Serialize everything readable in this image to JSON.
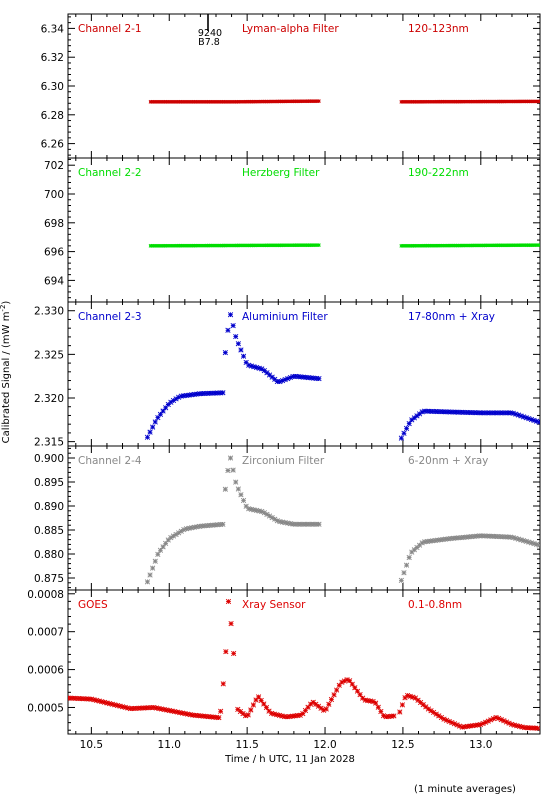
{
  "y_axis_label": "Calibrated Signal / (mW m",
  "y_axis_label_super": "-2",
  "y_axis_label_close": ")",
  "x_axis_label": "Time / h UTC, 11 Jan 2028",
  "footnote": "(1 minute averages)",
  "x_ticks": [
    "10.5",
    "11.0",
    "11.5",
    "12.0",
    "12.5",
    "13.0"
  ],
  "marker_annotation": [
    "9240",
    "B7.8"
  ],
  "chart_data": [
    {
      "type": "scatter",
      "panel": "Channel 2-1",
      "labels": [
        "Channel 2-1",
        "Lyman-alpha Filter",
        "120-123nm"
      ],
      "color": "#cc0000",
      "ylim": [
        6.25,
        6.35
      ],
      "y_ticks": [
        "6.26",
        "6.28",
        "6.30",
        "6.32",
        "6.34"
      ],
      "segments": [
        {
          "x_start": 10.88,
          "x_end": 11.97,
          "anchors": [
            [
              10.88,
              6.289
            ],
            [
              11.4,
              6.289
            ],
            [
              11.97,
              6.2895
            ]
          ]
        },
        {
          "x_start": 12.49,
          "x_end": 13.38,
          "anchors": [
            [
              12.49,
              6.289
            ],
            [
              13.38,
              6.2893
            ]
          ]
        }
      ]
    },
    {
      "type": "scatter",
      "panel": "Channel 2-2",
      "labels": [
        "Channel 2-2",
        "Herzberg Filter",
        "190-222nm"
      ],
      "color": "#00dd00",
      "ylim": [
        692.5,
        702.5
      ],
      "y_ticks": [
        "694",
        "696",
        "698",
        "700",
        "702"
      ],
      "segments": [
        {
          "x_start": 10.88,
          "x_end": 11.97,
          "anchors": [
            [
              10.88,
              696.4
            ],
            [
              11.97,
              696.45
            ]
          ]
        },
        {
          "x_start": 12.49,
          "x_end": 13.38,
          "anchors": [
            [
              12.49,
              696.4
            ],
            [
              13.38,
              696.45
            ]
          ]
        }
      ]
    },
    {
      "type": "scatter",
      "panel": "Channel 2-3",
      "labels": [
        "Channel 2-3",
        "Aluminium Filter",
        "17-80nm + Xray"
      ],
      "color": "#0000cc",
      "ylim": [
        2.3145,
        2.331
      ],
      "y_ticks": [
        "2.315",
        "2.320",
        "2.325",
        "2.330"
      ],
      "segments": [
        {
          "x_start": 10.86,
          "x_end": 11.35,
          "anchors": [
            [
              10.86,
              2.3155
            ],
            [
              10.92,
              2.3176
            ],
            [
              11.0,
              2.3194
            ],
            [
              11.07,
              2.3202
            ],
            [
              11.2,
              2.3205
            ],
            [
              11.35,
              2.3206
            ]
          ]
        },
        {
          "x_start": 11.36,
          "x_end": 11.97,
          "anchors": [
            [
              11.36,
              2.3252
            ],
            [
              11.39,
              2.3298
            ],
            [
              11.43,
              2.3268
            ],
            [
              11.5,
              2.3238
            ],
            [
              11.6,
              2.3233
            ],
            [
              11.7,
              2.3218
            ],
            [
              11.8,
              2.3225
            ],
            [
              11.97,
              2.3222
            ]
          ]
        },
        {
          "x_start": 12.49,
          "x_end": 13.38,
          "anchors": [
            [
              12.49,
              2.3154
            ],
            [
              12.55,
              2.3174
            ],
            [
              12.63,
              2.3185
            ],
            [
              12.8,
              2.3184
            ],
            [
              13.0,
              2.3183
            ],
            [
              13.2,
              2.3183
            ],
            [
              13.38,
              2.3172
            ]
          ]
        }
      ]
    },
    {
      "type": "scatter",
      "panel": "Channel 2-4",
      "labels": [
        "Channel 2-4",
        "Zirconium Filter",
        "6-20nm + Xray"
      ],
      "color": "#888888",
      "ylim": [
        0.8725,
        0.9025
      ],
      "y_ticks": [
        "0.875",
        "0.880",
        "0.885",
        "0.890",
        "0.895",
        "0.900"
      ],
      "segments": [
        {
          "x_start": 10.86,
          "x_end": 11.35,
          "anchors": [
            [
              10.86,
              0.8742
            ],
            [
              10.93,
              0.8802
            ],
            [
              11.0,
              0.8832
            ],
            [
              11.1,
              0.8852
            ],
            [
              11.2,
              0.8858
            ],
            [
              11.35,
              0.8862
            ]
          ]
        },
        {
          "x_start": 11.36,
          "x_end": 11.97,
          "anchors": [
            [
              11.36,
              0.8935
            ],
            [
              11.39,
              0.9005
            ],
            [
              11.43,
              0.8945
            ],
            [
              11.5,
              0.8895
            ],
            [
              11.6,
              0.8888
            ],
            [
              11.7,
              0.8868
            ],
            [
              11.8,
              0.8862
            ],
            [
              11.97,
              0.8862
            ]
          ]
        },
        {
          "x_start": 12.49,
          "x_end": 13.38,
          "anchors": [
            [
              12.49,
              0.8745
            ],
            [
              12.55,
              0.8802
            ],
            [
              12.63,
              0.8825
            ],
            [
              12.8,
              0.8832
            ],
            [
              13.0,
              0.8838
            ],
            [
              13.2,
              0.8835
            ],
            [
              13.38,
              0.8818
            ]
          ]
        }
      ]
    },
    {
      "type": "scatter",
      "panel": "GOES",
      "labels": [
        "GOES",
        "Xray Sensor",
        "0.1-0.8nm"
      ],
      "color": "#dd0000",
      "ylim": [
        0.00043,
        0.00081
      ],
      "y_ticks": [
        "0.0005",
        "0.0006",
        "0.0007",
        "0.0008"
      ],
      "segments": [
        {
          "x_start": 10.35,
          "x_end": 11.32,
          "anchors": [
            [
              10.35,
              0.000525
            ],
            [
              10.5,
              0.000522
            ],
            [
              10.6,
              0.000512
            ],
            [
              10.75,
              0.000497
            ],
            [
              10.9,
              0.0005
            ],
            [
              11.0,
              0.000492
            ],
            [
              11.15,
              0.00048
            ],
            [
              11.32,
              0.000473
            ]
          ]
        },
        {
          "x_start": 11.33,
          "x_end": 11.43,
          "anchors": [
            [
              11.33,
              0.00049
            ],
            [
              11.36,
              0.00062
            ],
            [
              11.38,
              0.00078
            ],
            [
              11.4,
              0.00071
            ],
            [
              11.43,
              0.00056
            ]
          ]
        },
        {
          "x_start": 11.44,
          "x_end": 12.45,
          "anchors": [
            [
              11.44,
              0.000495
            ],
            [
              11.5,
              0.000475
            ],
            [
              11.57,
              0.00053
            ],
            [
              11.65,
              0.000485
            ],
            [
              11.75,
              0.000475
            ],
            [
              11.85,
              0.00048
            ],
            [
              11.92,
              0.000515
            ],
            [
              12.0,
              0.00049
            ],
            [
              12.1,
              0.000565
            ],
            [
              12.15,
              0.000575
            ],
            [
              12.25,
              0.00052
            ],
            [
              12.32,
              0.000515
            ],
            [
              12.38,
              0.000475
            ],
            [
              12.45,
              0.000478
            ]
          ]
        },
        {
          "x_start": 12.48,
          "x_end": 13.38,
          "anchors": [
            [
              12.48,
              0.000488
            ],
            [
              12.52,
              0.000533
            ],
            [
              12.58,
              0.000525
            ],
            [
              12.66,
              0.000497
            ],
            [
              12.76,
              0.00047
            ],
            [
              12.88,
              0.000448
            ],
            [
              13.0,
              0.000455
            ],
            [
              13.1,
              0.000474
            ],
            [
              13.2,
              0.000455
            ],
            [
              13.28,
              0.000447
            ],
            [
              13.38,
              0.000445
            ]
          ]
        }
      ]
    }
  ],
  "x_range": [
    10.35,
    13.38
  ]
}
